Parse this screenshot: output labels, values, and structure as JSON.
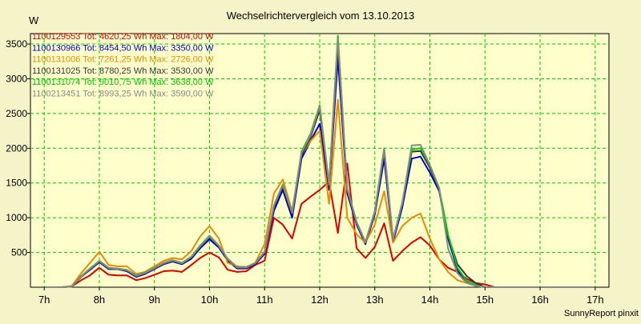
{
  "chart_data": {
    "type": "line",
    "title": "Wechselrichtervergleich vom 13.10.2013",
    "ylabel": "W",
    "xlabel": "",
    "footer": "SunnyReport pinxit",
    "grid": true,
    "xlim": [
      6.75,
      17.25
    ],
    "ylim": [
      0,
      3650
    ],
    "xticks": [
      7,
      8,
      9,
      10,
      11,
      12,
      13,
      14,
      15,
      16,
      17
    ],
    "xtick_labels": [
      "7h",
      "8h",
      "9h",
      "10h",
      "11h",
      "12h",
      "13h",
      "14h",
      "15h",
      "16h",
      "17h"
    ],
    "yticks": [
      500,
      1000,
      1500,
      2000,
      2500,
      3000,
      3500
    ],
    "ytick_labels": [
      "500",
      "1000",
      "1500",
      "2000",
      "2500",
      "3000",
      "3500"
    ],
    "x": [
      7.0,
      7.17,
      7.33,
      7.5,
      7.67,
      7.83,
      8.0,
      8.17,
      8.33,
      8.5,
      8.67,
      8.83,
      9.0,
      9.17,
      9.33,
      9.5,
      9.67,
      9.83,
      10.0,
      10.17,
      10.33,
      10.5,
      10.67,
      10.83,
      11.0,
      11.17,
      11.33,
      11.5,
      11.67,
      11.83,
      12.0,
      12.17,
      12.33,
      12.5,
      12.67,
      12.83,
      13.0,
      13.17,
      13.33,
      13.5,
      13.67,
      13.83,
      14.0,
      14.17,
      14.33,
      14.5,
      14.67,
      14.83,
      15.0,
      15.17,
      15.33,
      15.5,
      15.67,
      15.83,
      16.0,
      16.17,
      16.33,
      16.5,
      16.67,
      16.83,
      17.0
    ],
    "series": [
      {
        "name": "1100129553",
        "legend": "1100129553 Tot: 4620,25 Wh Max: 1804,00 W",
        "color": "#dd0000",
        "values": [
          0,
          0,
          0,
          10,
          100,
          170,
          280,
          180,
          170,
          170,
          100,
          130,
          180,
          230,
          240,
          220,
          320,
          420,
          500,
          430,
          250,
          220,
          230,
          320,
          380,
          1000,
          900,
          700,
          1200,
          1300,
          1400,
          1520,
          780,
          1780,
          560,
          420,
          580,
          920,
          380,
          520,
          640,
          720,
          600,
          400,
          280,
          220,
          120,
          60,
          40,
          0,
          0,
          0,
          0,
          0,
          0,
          0,
          0,
          0,
          0,
          0,
          0
        ]
      },
      {
        "name": "1100130966",
        "legend": "1100130966 Tot: 8454,50 Wh Max: 3350,00 W",
        "color": "#0000cc",
        "values": [
          0,
          0,
          0,
          10,
          150,
          250,
          360,
          260,
          260,
          230,
          150,
          190,
          260,
          330,
          370,
          330,
          410,
          560,
          690,
          570,
          380,
          270,
          270,
          330,
          480,
          1100,
          1400,
          1000,
          1850,
          2100,
          2350,
          1400,
          3300,
          1350,
          900,
          620,
          1050,
          1850,
          650,
          1150,
          1850,
          1880,
          1650,
          1380,
          700,
          250,
          80,
          30,
          0,
          0,
          0,
          0,
          0,
          0,
          0,
          0,
          0,
          0,
          0,
          0,
          0
        ]
      },
      {
        "name": "1100131006",
        "legend": "1100131006 Tot: 7261,25 Wh Max: 2726,00 W",
        "color": "#ee8800",
        "values": [
          0,
          0,
          0,
          20,
          200,
          350,
          510,
          320,
          300,
          300,
          190,
          220,
          300,
          380,
          420,
          400,
          520,
          730,
          880,
          700,
          350,
          300,
          290,
          350,
          620,
          1350,
          1550,
          1100,
          1900,
          2100,
          2250,
          1200,
          2700,
          1000,
          760,
          640,
          900,
          1380,
          640,
          880,
          1000,
          1060,
          700,
          400,
          220,
          100,
          60,
          30,
          0,
          0,
          0,
          0,
          0,
          0,
          0,
          0,
          0,
          0,
          0,
          0,
          0
        ]
      },
      {
        "name": "1100131025",
        "legend": "1100131025 Tot: 8780,25 Wh Max: 3530,00 W",
        "color": "#333333",
        "values": [
          0,
          0,
          0,
          10,
          150,
          260,
          370,
          270,
          260,
          240,
          160,
          200,
          270,
          340,
          380,
          340,
          430,
          580,
          720,
          590,
          400,
          280,
          280,
          340,
          500,
          1150,
          1450,
          1050,
          1900,
          2150,
          2550,
          1450,
          3500,
          1400,
          920,
          640,
          1080,
          1950,
          680,
          1200,
          1950,
          1960,
          1720,
          1400,
          740,
          330,
          160,
          60,
          0,
          0,
          0,
          0,
          0,
          0,
          0,
          0,
          0,
          0,
          0,
          0,
          0
        ]
      },
      {
        "name": "1100131074",
        "legend": "1100131074 Tot: 9010,75 Wh Max: 3638,00 W",
        "color": "#00cc00",
        "values": [
          0,
          0,
          0,
          10,
          160,
          270,
          380,
          280,
          270,
          250,
          170,
          210,
          280,
          350,
          390,
          350,
          440,
          600,
          740,
          600,
          410,
          290,
          290,
          350,
          510,
          1180,
          1480,
          1080,
          1950,
          2200,
          2620,
          1480,
          3620,
          1420,
          940,
          650,
          1100,
          2000,
          690,
          1220,
          1980,
          2000,
          1750,
          1420,
          760,
          280,
          90,
          30,
          0,
          0,
          0,
          0,
          0,
          0,
          0,
          0,
          0,
          0,
          0,
          0,
          0
        ]
      },
      {
        "name": "1100213451",
        "legend": "1100213451 Tot: 8993,25 Wh Max: 3590,00 W",
        "color": "#888888",
        "values": [
          0,
          0,
          0,
          10,
          155,
          265,
          375,
          275,
          265,
          245,
          165,
          205,
          275,
          345,
          385,
          345,
          435,
          590,
          730,
          595,
          405,
          285,
          285,
          345,
          505,
          1170,
          1470,
          1070,
          1930,
          2180,
          2600,
          1470,
          3580,
          1410,
          930,
          645,
          1090,
          1990,
          685,
          1210,
          2040,
          2050,
          1760,
          1430,
          560,
          200,
          60,
          20,
          0,
          0,
          0,
          0,
          0,
          0,
          0,
          0,
          0,
          0,
          0,
          0,
          0
        ]
      }
    ]
  },
  "colors": {
    "background": "#f5f3c8",
    "plot_background": "#ffffcc",
    "grid": "#00cc00"
  }
}
